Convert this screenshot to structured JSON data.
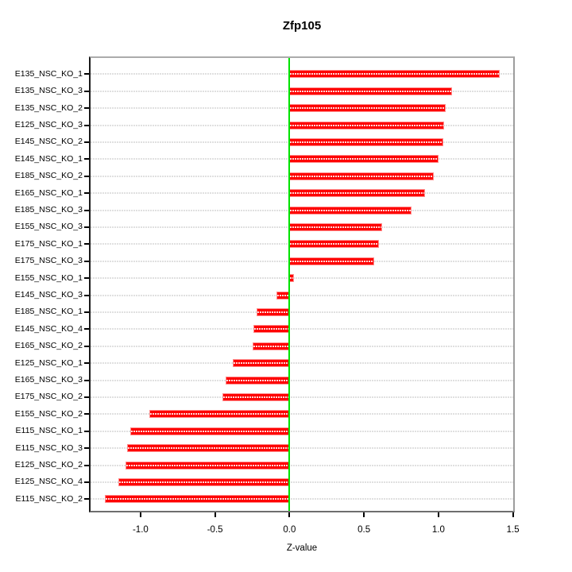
{
  "title": "Zfp105",
  "chart_data": {
    "type": "bar",
    "orientation": "horizontal",
    "title": "Zfp105",
    "xlabel": "Z-value",
    "ylabel": "",
    "xlim": [
      -1.35,
      1.5
    ],
    "x_ticks": [
      -1.0,
      -0.5,
      0.0,
      0.5,
      1.0,
      1.5
    ],
    "x_tick_labels": [
      "-1.0",
      "-0.5",
      "0.0",
      "0.5",
      "1.0",
      "1.5"
    ],
    "grid": "dotted horizontal line per category",
    "zero_reference_line": 0.0,
    "legend_position": "none",
    "categories": [
      "E135_NSC_KO_1",
      "E135_NSC_KO_3",
      "E135_NSC_KO_2",
      "E125_NSC_KO_3",
      "E145_NSC_KO_2",
      "E145_NSC_KO_1",
      "E185_NSC_KO_2",
      "E165_NSC_KO_1",
      "E185_NSC_KO_3",
      "E155_NSC_KO_3",
      "E175_NSC_KO_1",
      "E175_NSC_KO_3",
      "E155_NSC_KO_1",
      "E145_NSC_KO_3",
      "E185_NSC_KO_1",
      "E145_NSC_KO_4",
      "E165_NSC_KO_2",
      "E125_NSC_KO_1",
      "E165_NSC_KO_3",
      "E175_NSC_KO_2",
      "E155_NSC_KO_2",
      "E115_NSC_KO_1",
      "E115_NSC_KO_3",
      "E125_NSC_KO_2",
      "E125_NSC_KO_4",
      "E115_NSC_KO_2"
    ],
    "values": [
      1.41,
      1.09,
      1.05,
      1.04,
      1.03,
      1.0,
      0.97,
      0.91,
      0.82,
      0.62,
      0.6,
      0.57,
      0.03,
      -0.09,
      -0.22,
      -0.24,
      -0.25,
      -0.38,
      -0.43,
      -0.45,
      -0.94,
      -1.07,
      -1.09,
      -1.1,
      -1.15,
      -1.24
    ]
  },
  "colors": {
    "bar_fill": "#fe0000",
    "bar_border": "#ff8d8d",
    "zero_line": "#00e300",
    "grid_line": "#e0e0e0",
    "background": "#ffffff",
    "text": "#000000"
  }
}
